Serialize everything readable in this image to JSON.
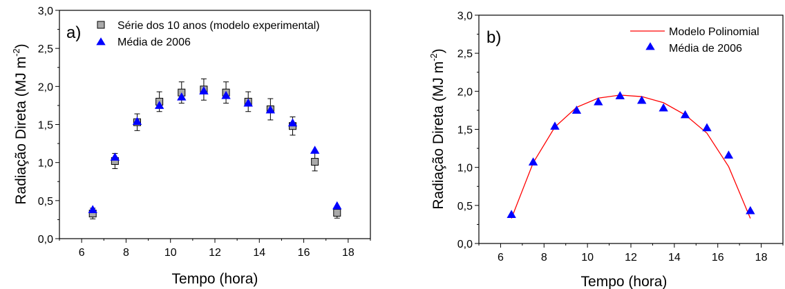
{
  "chart_data": [
    {
      "type": "scatter",
      "panel_label": "a)",
      "xlabel": "Tempo (hora)",
      "ylabel": "Radiação Direta (MJ m",
      "ylabel_sup": "-2",
      "ylabel_close": ")",
      "xlim": [
        5,
        19
      ],
      "ylim": [
        0,
        3
      ],
      "xticks": [
        6,
        8,
        10,
        12,
        14,
        16,
        18
      ],
      "yticks": [
        "0,0",
        "0,5",
        "1,0",
        "1,5",
        "2,0",
        "2,5",
        "3,0"
      ],
      "legend_position": "top-left",
      "series": [
        {
          "name": "Série dos 10 anos (modelo experimental)",
          "marker": "square",
          "color": "#aaaaaa",
          "x": [
            6.5,
            7.5,
            8.5,
            9.5,
            10.5,
            11.5,
            12.5,
            13.5,
            14.5,
            15.5,
            16.5,
            17.5
          ],
          "y": [
            0.33,
            1.02,
            1.53,
            1.8,
            1.92,
            1.96,
            1.92,
            1.8,
            1.7,
            1.48,
            1.01,
            0.34
          ],
          "err": [
            0.07,
            0.1,
            0.11,
            0.13,
            0.14,
            0.14,
            0.14,
            0.13,
            0.14,
            0.12,
            0.12,
            0.07
          ]
        },
        {
          "name": "Média de 2006",
          "marker": "triangle",
          "color": "#0000ff",
          "x": [
            6.5,
            7.5,
            8.5,
            9.5,
            10.5,
            11.5,
            12.5,
            13.5,
            14.5,
            15.5,
            16.5,
            17.5
          ],
          "y": [
            0.38,
            1.07,
            1.54,
            1.75,
            1.86,
            1.94,
            1.88,
            1.78,
            1.69,
            1.52,
            1.16,
            0.43
          ]
        }
      ]
    },
    {
      "type": "line",
      "panel_label": "b)",
      "xlabel": "Tempo (hora)",
      "ylabel": "Radiação Direta (MJ m",
      "ylabel_sup": "-2",
      "ylabel_close": ")",
      "xlim": [
        5,
        19
      ],
      "ylim": [
        0,
        3
      ],
      "xticks": [
        6,
        8,
        10,
        12,
        14,
        16,
        18
      ],
      "yticks": [
        "0,0",
        "0,5",
        "1,0",
        "1,5",
        "2,0",
        "2,5",
        "3,0"
      ],
      "legend_position": "top-right",
      "series": [
        {
          "name": "Modelo Polinomial",
          "marker": "line",
          "color": "#ff0000",
          "x": [
            6.5,
            7.5,
            8.5,
            9.5,
            10.5,
            11.5,
            12.5,
            13.5,
            14.5,
            15.5,
            16.5,
            17.5
          ],
          "y": [
            0.33,
            1.06,
            1.53,
            1.79,
            1.91,
            1.95,
            1.93,
            1.85,
            1.69,
            1.45,
            1.01,
            0.33
          ]
        },
        {
          "name": "Média de 2006",
          "marker": "triangle",
          "color": "#0000ff",
          "x": [
            6.5,
            7.5,
            8.5,
            9.5,
            10.5,
            11.5,
            12.5,
            13.5,
            14.5,
            15.5,
            16.5,
            17.5
          ],
          "y": [
            0.38,
            1.07,
            1.54,
            1.75,
            1.86,
            1.94,
            1.88,
            1.78,
            1.69,
            1.52,
            1.16,
            0.43
          ]
        }
      ]
    }
  ]
}
